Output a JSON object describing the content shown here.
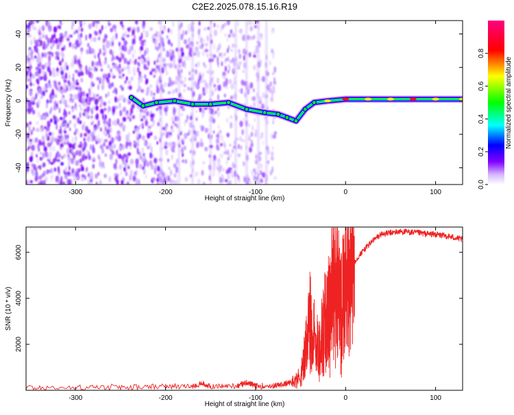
{
  "figure": {
    "title": "C2E2.2025.078.15.16.R19"
  },
  "chart_data": [
    {
      "type": "heatmap",
      "xlabel": "Height of straight line (km)",
      "ylabel": "Frequency (Hz)",
      "xlim": [
        -355,
        130
      ],
      "ylim": [
        -50,
        48
      ],
      "x_ticks": [
        -300,
        -200,
        -100,
        0,
        100
      ],
      "y_ticks": [
        -40,
        -20,
        0,
        20,
        40
      ],
      "colorbar": {
        "label": "Normalized spectral amplitude",
        "range": [
          0,
          1
        ],
        "ticks": [
          0.0,
          0.2,
          0.4,
          0.6,
          0.8
        ],
        "colors": [
          "#ffffff",
          "#7f00ff",
          "#0000ff",
          "#00ffff",
          "#00ff00",
          "#ffff00",
          "#ff0000",
          "#ff0080"
        ]
      },
      "noise_region": {
        "x_range": [
          -355,
          -78
        ],
        "y_range": [
          -50,
          48
        ]
      },
      "signal_trace": [
        {
          "x": -238,
          "y": 2
        },
        {
          "x": -225,
          "y": -3
        },
        {
          "x": -210,
          "y": -1
        },
        {
          "x": -190,
          "y": 0
        },
        {
          "x": -170,
          "y": -2
        },
        {
          "x": -150,
          "y": -2
        },
        {
          "x": -130,
          "y": -1
        },
        {
          "x": -110,
          "y": -5
        },
        {
          "x": -90,
          "y": -7
        },
        {
          "x": -75,
          "y": -8
        },
        {
          "x": -65,
          "y": -10
        },
        {
          "x": -55,
          "y": -12
        },
        {
          "x": -45,
          "y": -5
        },
        {
          "x": -35,
          "y": -1
        },
        {
          "x": -20,
          "y": 0
        },
        {
          "x": 0,
          "y": 1
        },
        {
          "x": 25,
          "y": 1
        },
        {
          "x": 50,
          "y": 1
        },
        {
          "x": 75,
          "y": 1
        },
        {
          "x": 100,
          "y": 1
        },
        {
          "x": 130,
          "y": 1
        }
      ]
    },
    {
      "type": "line",
      "xlabel": "Height of straight line (km)",
      "ylabel": "SNR (10 * v/v)",
      "xlim": [
        -355,
        130
      ],
      "ylim": [
        0,
        7100
      ],
      "x_ticks": [
        -300,
        -200,
        -100,
        0,
        100
      ],
      "y_ticks": [
        2000,
        4000,
        6000
      ],
      "series": [
        {
          "color": "#ee2222",
          "x": [
            -355,
            -300,
            -250,
            -200,
            -170,
            -160,
            -150,
            -120,
            -110,
            -100,
            -80,
            -70,
            -60,
            -50,
            -45,
            -40,
            -35,
            -30,
            -25,
            -20,
            -15,
            -10,
            -5,
            0,
            5,
            10,
            20,
            30,
            40,
            50,
            60,
            70,
            80,
            90,
            100,
            110,
            120,
            130
          ],
          "values": [
            120,
            110,
            130,
            150,
            180,
            300,
            160,
            200,
            350,
            180,
            200,
            250,
            350,
            600,
            1500,
            3000,
            2200,
            1800,
            2600,
            3200,
            4500,
            4400,
            3800,
            4800,
            5200,
            5600,
            6100,
            6500,
            6800,
            6850,
            6900,
            6880,
            6850,
            6800,
            6780,
            6720,
            6650,
            6550
          ]
        }
      ]
    }
  ]
}
